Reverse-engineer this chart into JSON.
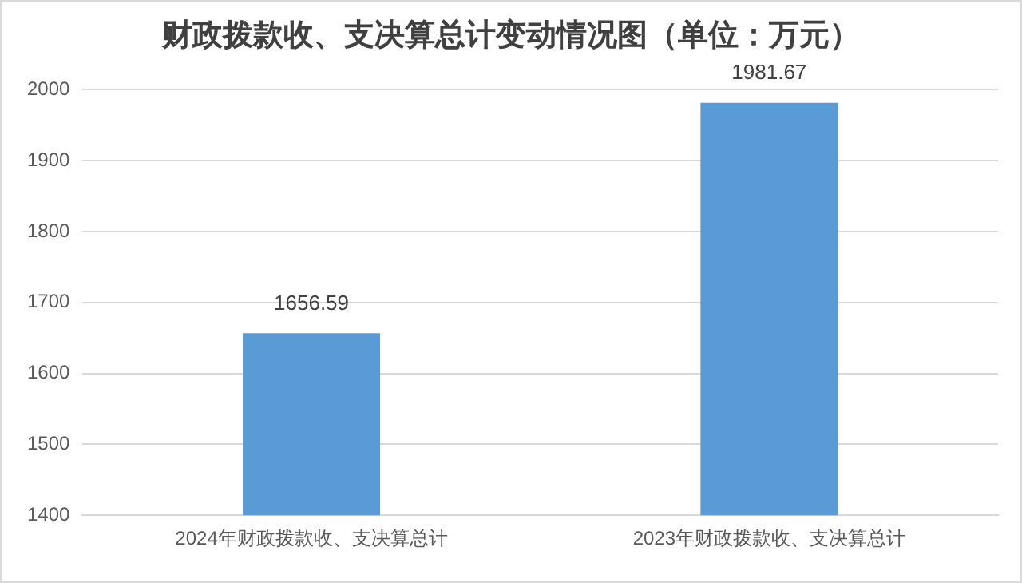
{
  "chart_data": {
    "type": "bar",
    "title": "财政拨款收、支决算总计变动情况图（单位：万元）",
    "categories": [
      "2024年财政拨款收、支决算总计",
      "2023年财政拨款收、支决算总计"
    ],
    "values": [
      1656.59,
      1981.67
    ],
    "color": "#5b9bd5",
    "ylim": [
      1400,
      2000
    ],
    "yticks": [
      1400,
      1500,
      1600,
      1700,
      1800,
      1900,
      2000
    ],
    "grid": "y",
    "data_labels": true
  }
}
